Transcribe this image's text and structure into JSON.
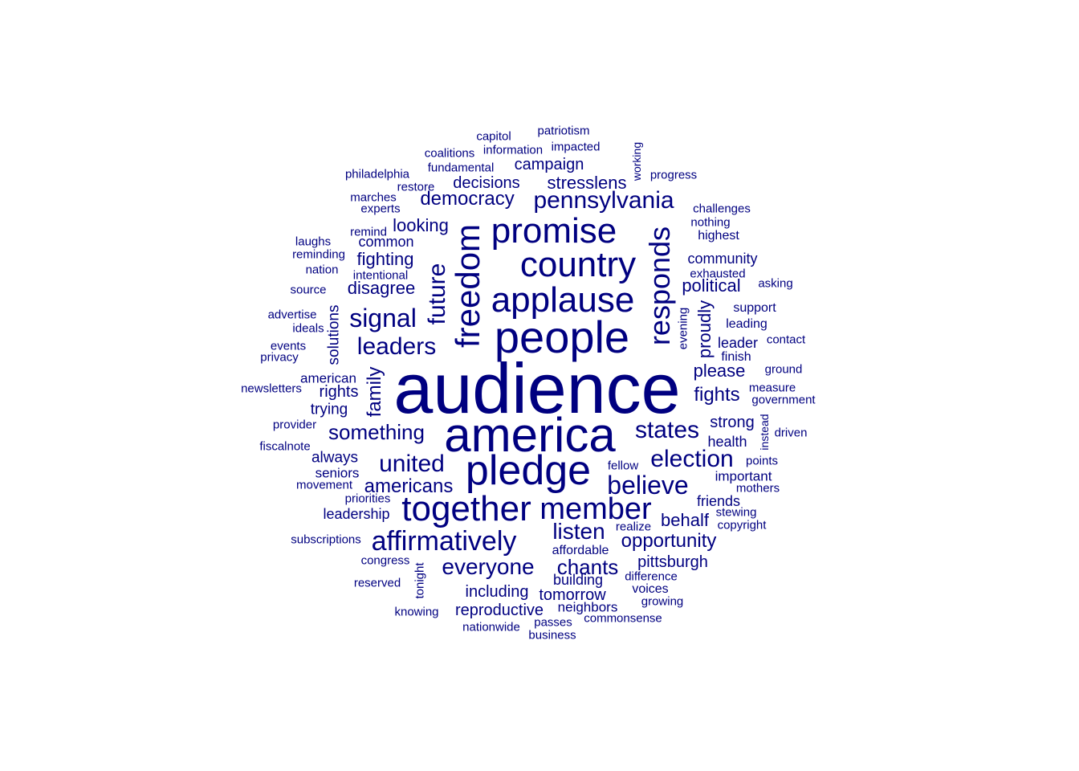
{
  "colors": {
    "word": "#000080",
    "background": "#ffffff"
  },
  "words": [
    "audience",
    "america",
    "people",
    "pledge",
    "together",
    "country",
    "promise",
    "applause",
    "member",
    "freedom",
    "responds",
    "affirmatively",
    "election",
    "believe",
    "pennsylvania",
    "signal",
    "leaders",
    "states",
    "united",
    "future",
    "something",
    "everyone",
    "listen",
    "chants",
    "opportunity",
    "americans",
    "democracy",
    "fights",
    "please",
    "political",
    "behalf",
    "community",
    "pittsburgh",
    "looking",
    "fighting",
    "disagree",
    "tomorrow",
    "including",
    "reproductive",
    "family",
    "campaign",
    "stresslens",
    "decisions",
    "proudly",
    "leadership",
    "health",
    "strong",
    "rights",
    "american",
    "always",
    "trying",
    "friends",
    "important",
    "leader",
    "solutions",
    "common",
    "seniors",
    "building",
    "affordable",
    "evening",
    "fundamental",
    "information",
    "coalitions",
    "capitol",
    "patriotism",
    "impacted",
    "philadelphia",
    "restore",
    "working",
    "progress",
    "marches",
    "experts",
    "challenges",
    "nothing",
    "highest",
    "remind",
    "laughs",
    "reminding",
    "nation",
    "intentional",
    "exhausted",
    "asking",
    "source",
    "support",
    "advertise",
    "ideals",
    "leading",
    "contact",
    "events",
    "privacy",
    "finish",
    "ground",
    "newsletters",
    "measure",
    "government",
    "provider",
    "instead",
    "driven",
    "fiscalnote",
    "points",
    "fellow",
    "movement",
    "mothers",
    "priorities",
    "stewing",
    "realize",
    "copyright",
    "subscriptions",
    "congress",
    "tonight",
    "difference",
    "reserved",
    "voices",
    "growing",
    "knowing",
    "neighbors",
    "passes",
    "commonsense",
    "nationwide",
    "business"
  ]
}
